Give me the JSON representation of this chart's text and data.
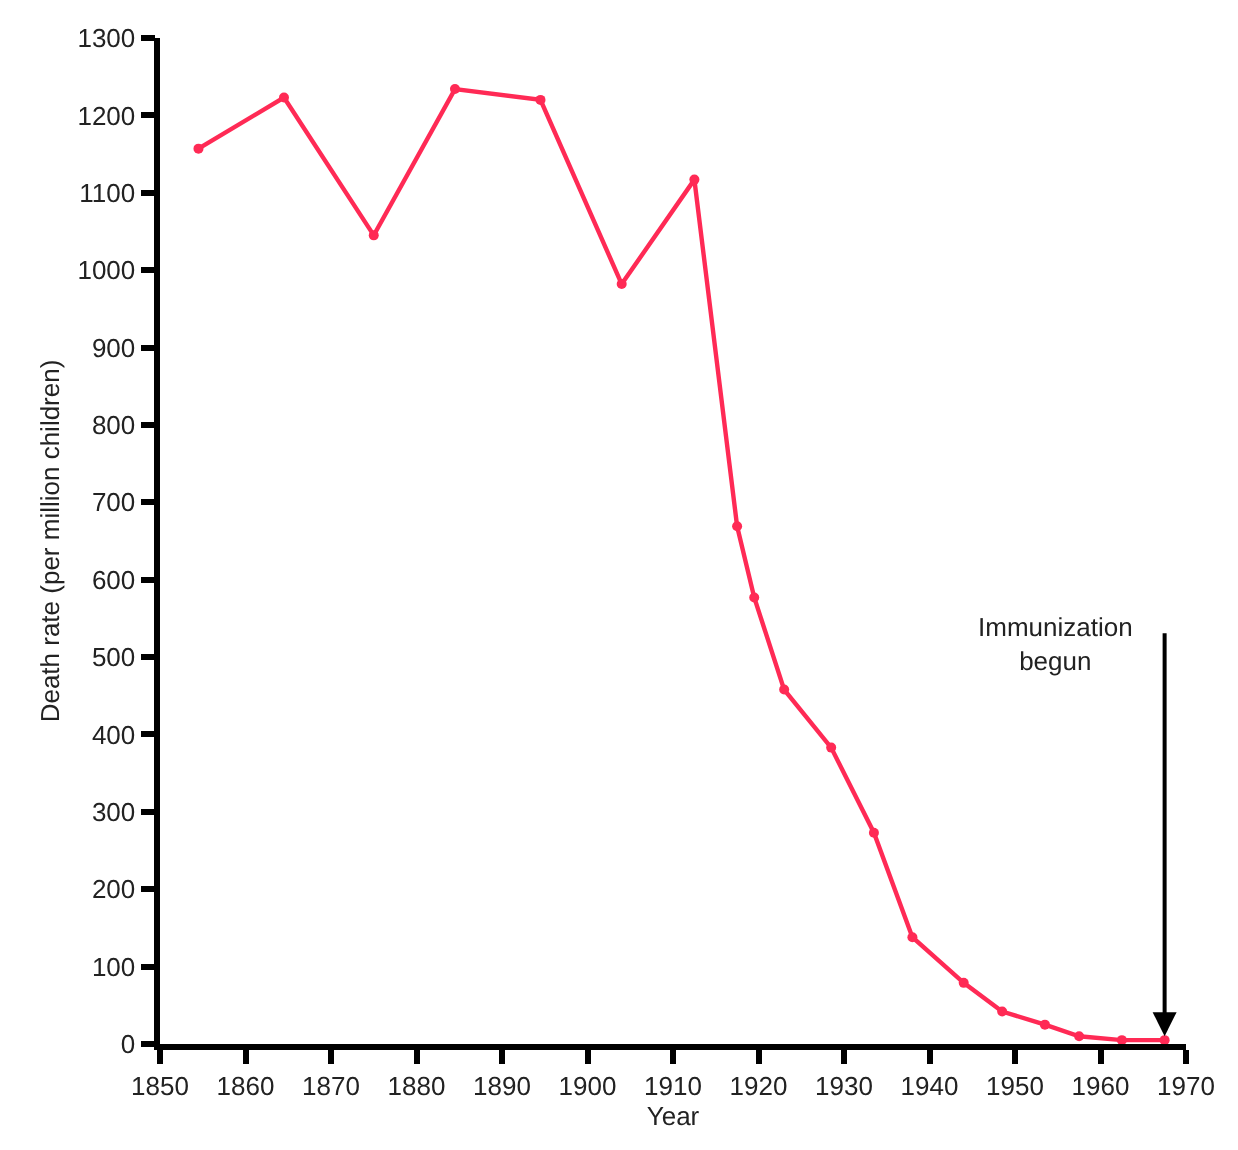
{
  "chart_data": {
    "type": "line",
    "xlabel": "Year",
    "ylabel": "Death rate (per million children)",
    "x": [
      1854.5,
      1864.5,
      1875,
      1884.5,
      1894.5,
      1904,
      1912.5,
      1917.5,
      1919.5,
      1923,
      1928.5,
      1933.5,
      1938,
      1944,
      1948.5,
      1953.5,
      1957.5,
      1962.5,
      1967.5
    ],
    "series": [
      {
        "color": "#ff2a55",
        "values": [
          1157,
          1223,
          1045,
          1234,
          1220,
          982,
          1117,
          669,
          577,
          458,
          383,
          273,
          138,
          79,
          42,
          25,
          10,
          5,
          5
        ]
      }
    ],
    "xlim": [
      1850,
      1970
    ],
    "xticks": [
      1850,
      1860,
      1870,
      1880,
      1890,
      1900,
      1910,
      1920,
      1930,
      1940,
      1950,
      1960,
      1970
    ],
    "ylim": [
      0,
      1300
    ],
    "yticks": [
      0,
      100,
      200,
      300,
      400,
      500,
      600,
      700,
      800,
      900,
      1000,
      1100,
      1200,
      1300
    ],
    "marker": "circle",
    "line_style": "solid",
    "legend": false,
    "annotations": [
      {
        "text": "Immunization\nbegun",
        "x": 1967.5,
        "y": 5
      }
    ]
  }
}
